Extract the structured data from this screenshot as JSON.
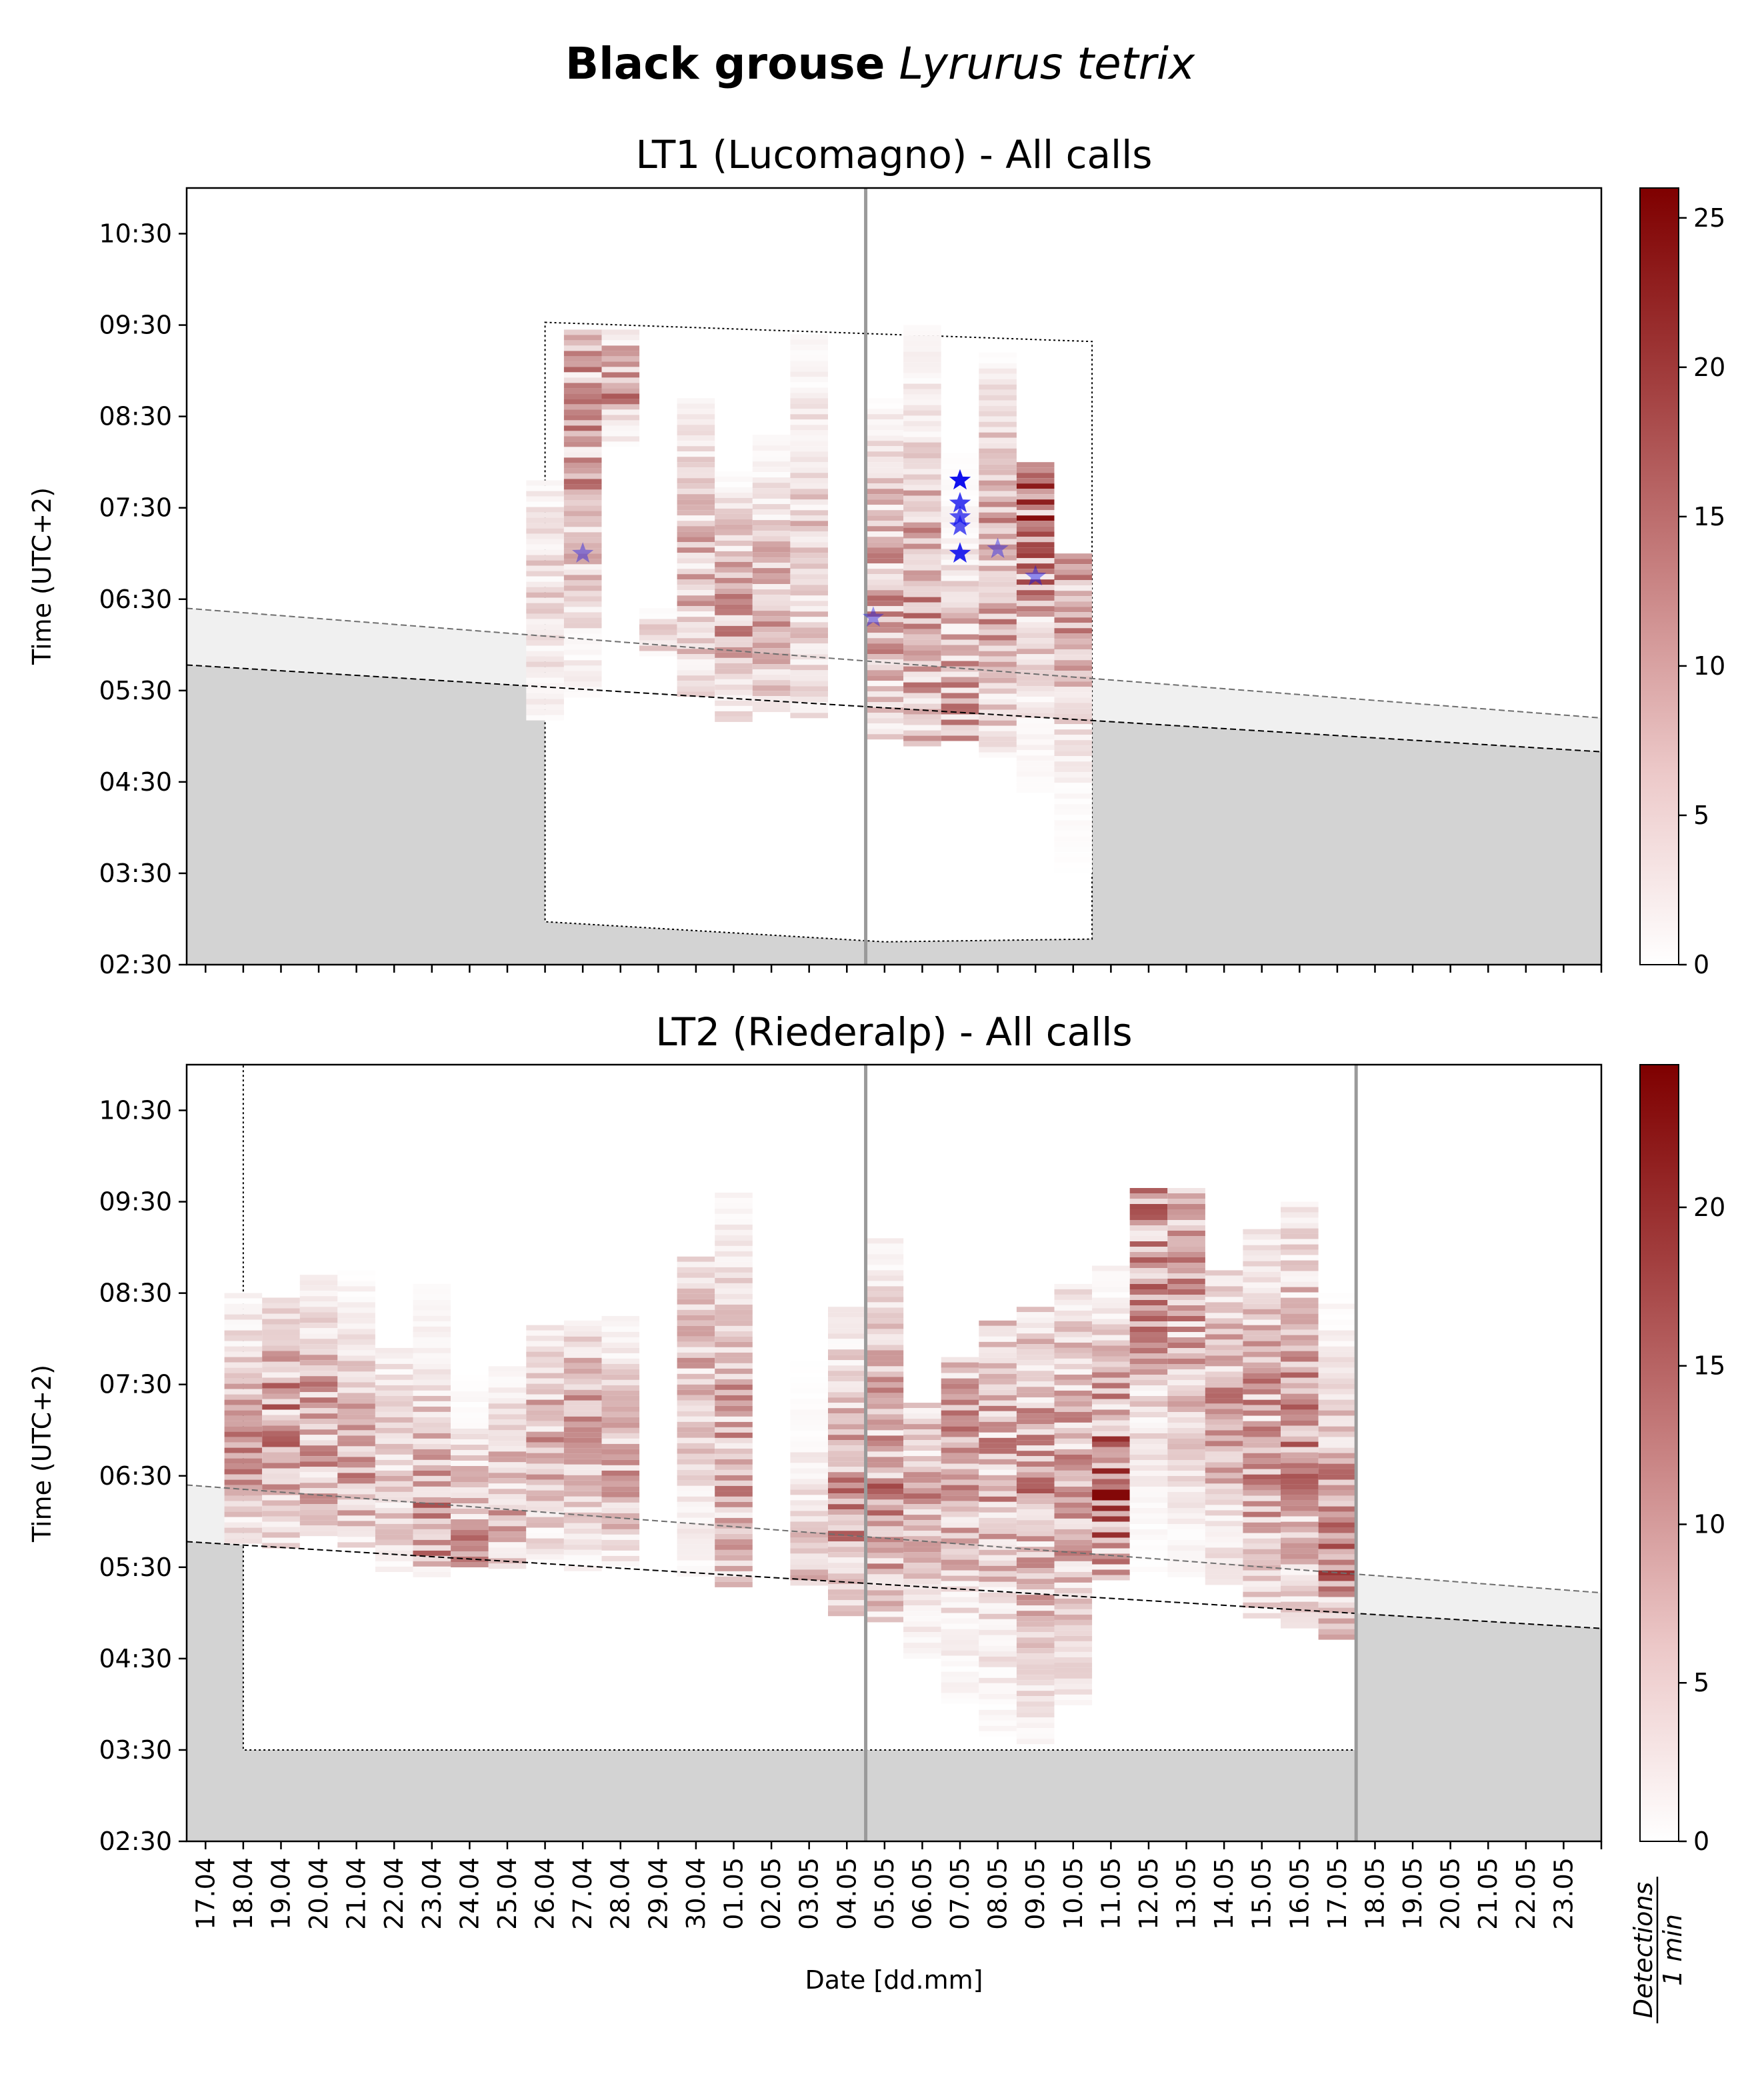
{
  "figure": {
    "title_bold": "Black grouse",
    "title_italic": "Lyrurus tetrix"
  },
  "colorbar_label": {
    "numerator": "Detections",
    "denominator": "1 min"
  },
  "colors": {
    "cmap_low": "#ffffff",
    "cmap_high": "#7f0000",
    "night_shade": "#d3d3d3",
    "twilight_shade": "#f0f0f0",
    "civil_line": "#000000",
    "twilight_line": "#6e6e6e",
    "recording_box": "#000000",
    "marker_line": "#9a9a9a",
    "star": "#1010ee"
  },
  "chart_data": [
    {
      "type": "heatmap",
      "title": "LT1 (Lucomagno) - All calls",
      "xlabel": "",
      "ylabel": "Time (UTC+2)",
      "x_tick_labels": [],
      "y_tick_labels": [
        "02:30",
        "03:30",
        "04:30",
        "05:30",
        "06:30",
        "07:30",
        "08:30",
        "09:30",
        "10:30"
      ],
      "colorbar": {
        "ticks": [
          0,
          5,
          10,
          15,
          20,
          25
        ],
        "range": [
          0,
          26
        ]
      },
      "grid": false,
      "vertical_marker_day": 17.5,
      "dawn_line_hours": {
        "start": 5.78,
        "end": 4.83
      },
      "twilight_line_hours": {
        "start": 6.4,
        "end": 5.2
      },
      "recording_window": [
        {
          "day": 9,
          "start_h": 2.97,
          "end_h": 9.53
        },
        {
          "day": 18,
          "start_h": 2.75,
          "end_h": 9.4
        },
        {
          "day": 23.5,
          "start_h": 2.78,
          "end_h": 9.32
        }
      ],
      "days": [
        {
          "day": 9,
          "start_h": 5.2,
          "end_h": 7.8,
          "peak": 8,
          "peak_h": 6.6
        },
        {
          "day": 10,
          "start_h": 5.45,
          "end_h": 9.45,
          "peak": 18,
          "peak_h": 8.2
        },
        {
          "day": 11,
          "start_h": 8.2,
          "end_h": 9.45,
          "peak": 16,
          "peak_h": 8.9
        },
        {
          "day": 12,
          "start_h": 5.9,
          "end_h": 6.4,
          "peak": 8,
          "peak_h": 6.1
        },
        {
          "day": 13,
          "start_h": 5.45,
          "end_h": 8.7,
          "peak": 12,
          "peak_h": 6.8
        },
        {
          "day": 14,
          "start_h": 5.2,
          "end_h": 7.9,
          "peak": 14,
          "peak_h": 6.4
        },
        {
          "day": 15,
          "start_h": 5.3,
          "end_h": 8.3,
          "peak": 12,
          "peak_h": 6.4
        },
        {
          "day": 16,
          "start_h": 5.2,
          "end_h": 9.4,
          "peak": 9,
          "peak_h": 6.9
        },
        {
          "day": 18,
          "start_h": 5.0,
          "end_h": 8.7,
          "peak": 15,
          "peak_h": 6.6
        },
        {
          "day": 19,
          "start_h": 4.9,
          "end_h": 9.5,
          "peak": 16,
          "peak_h": 6.3
        },
        {
          "day": 20,
          "start_h": 5.0,
          "end_h": 8.1,
          "peak": 14,
          "peak_h": 5.5
        },
        {
          "day": 21,
          "start_h": 4.8,
          "end_h": 9.2,
          "peak": 15,
          "peak_h": 6.7
        },
        {
          "day": 22,
          "start_h": 4.4,
          "end_h": 8.0,
          "peak": 22,
          "peak_h": 7.4
        },
        {
          "day": 23,
          "start_h": 3.5,
          "end_h": 7.0,
          "peak": 16,
          "peak_h": 6.7
        }
      ],
      "stars": [
        {
          "day": 10,
          "hour": 7.0,
          "opacity": 0.4
        },
        {
          "day": 17.7,
          "hour": 6.3,
          "opacity": 0.4
        },
        {
          "day": 20,
          "hour": 7.8,
          "opacity": 1.0
        },
        {
          "day": 20,
          "hour": 7.55,
          "opacity": 0.8
        },
        {
          "day": 20,
          "hour": 7.4,
          "opacity": 0.7
        },
        {
          "day": 20,
          "hour": 7.3,
          "opacity": 0.7
        },
        {
          "day": 20,
          "hour": 7.0,
          "opacity": 0.9
        },
        {
          "day": 21,
          "hour": 7.05,
          "opacity": 0.4
        },
        {
          "day": 22,
          "hour": 6.75,
          "opacity": 0.45
        }
      ]
    },
    {
      "type": "heatmap",
      "title": "LT2 (Riederalp) - All calls",
      "xlabel": "Date [dd.mm]",
      "ylabel": "Time (UTC+2)",
      "x_tick_labels": [
        "17.04",
        "18.04",
        "19.04",
        "20.04",
        "21.04",
        "22.04",
        "23.04",
        "24.04",
        "25.04",
        "26.04",
        "27.04",
        "28.04",
        "29.04",
        "30.04",
        "01.05",
        "02.05",
        "03.05",
        "04.05",
        "05.05",
        "06.05",
        "07.05",
        "08.05",
        "09.05",
        "10.05",
        "11.05",
        "12.05",
        "13.05",
        "14.05",
        "15.05",
        "16.05",
        "17.05",
        "18.05",
        "19.05",
        "20.05",
        "21.05",
        "22.05",
        "23.05"
      ],
      "y_tick_labels": [
        "02:30",
        "03:30",
        "04:30",
        "05:30",
        "06:30",
        "07:30",
        "08:30",
        "09:30",
        "10:30"
      ],
      "colorbar": {
        "ticks": [
          0,
          5,
          10,
          15,
          20
        ],
        "range": [
          0,
          24.5
        ]
      },
      "grid": false,
      "vertical_marker_days": [
        17.5,
        30.5
      ],
      "dawn_line_hours": {
        "start": 5.78,
        "end": 4.83
      },
      "twilight_line_hours": {
        "start": 6.4,
        "end": 5.22
      },
      "recording_window": [
        {
          "day": 1,
          "start_h": 3.5,
          "end_h": 11.1
        },
        {
          "day": 30.5,
          "start_h": 3.5,
          "end_h": 11.1
        }
      ],
      "days": [
        {
          "day": 1,
          "start_h": 5.8,
          "end_h": 8.5,
          "peak": 14,
          "peak_h": 6.9
        },
        {
          "day": 2,
          "start_h": 5.75,
          "end_h": 8.45,
          "peak": 17,
          "peak_h": 7.1
        },
        {
          "day": 3,
          "start_h": 5.85,
          "end_h": 8.7,
          "peak": 15,
          "peak_h": 7.0
        },
        {
          "day": 4,
          "start_h": 5.75,
          "end_h": 8.75,
          "peak": 13,
          "peak_h": 6.7
        },
        {
          "day": 5,
          "start_h": 5.5,
          "end_h": 7.9,
          "peak": 12,
          "peak_h": 6.6
        },
        {
          "day": 6,
          "start_h": 5.4,
          "end_h": 8.6,
          "peak": 16,
          "peak_h": 6.1
        },
        {
          "day": 7,
          "start_h": 5.5,
          "end_h": 7.6,
          "peak": 14,
          "peak_h": 5.9
        },
        {
          "day": 8,
          "start_h": 5.5,
          "end_h": 7.7,
          "peak": 13,
          "peak_h": 6.3
        },
        {
          "day": 9,
          "start_h": 5.55,
          "end_h": 8.15,
          "peak": 12,
          "peak_h": 6.9
        },
        {
          "day": 10,
          "start_h": 5.5,
          "end_h": 8.2,
          "peak": 13,
          "peak_h": 7.1
        },
        {
          "day": 11,
          "start_h": 5.55,
          "end_h": 8.25,
          "peak": 12,
          "peak_h": 6.6
        },
        {
          "day": 13,
          "start_h": 5.45,
          "end_h": 8.9,
          "peak": 10,
          "peak_h": 7.7
        },
        {
          "day": 14,
          "start_h": 5.3,
          "end_h": 9.6,
          "peak": 14,
          "peak_h": 6.8
        },
        {
          "day": 16,
          "start_h": 5.35,
          "end_h": 7.75,
          "peak": 9,
          "peak_h": 5.6
        },
        {
          "day": 17,
          "start_h": 5.0,
          "end_h": 8.35,
          "peak": 16,
          "peak_h": 6.4
        },
        {
          "day": 18,
          "start_h": 4.95,
          "end_h": 9.1,
          "peak": 17,
          "peak_h": 6.5
        },
        {
          "day": 19,
          "start_h": 4.55,
          "end_h": 7.3,
          "peak": 13,
          "peak_h": 6.3
        },
        {
          "day": 20,
          "start_h": 4.05,
          "end_h": 7.8,
          "peak": 15,
          "peak_h": 6.7
        },
        {
          "day": 21,
          "start_h": 3.7,
          "end_h": 8.2,
          "peak": 14,
          "peak_h": 6.8
        },
        {
          "day": 22,
          "start_h": 3.6,
          "end_h": 8.35,
          "peak": 15,
          "peak_h": 6.4
        },
        {
          "day": 23,
          "start_h": 4.0,
          "end_h": 8.6,
          "peak": 14,
          "peak_h": 6.5
        },
        {
          "day": 24,
          "start_h": 5.4,
          "end_h": 8.8,
          "peak": 22,
          "peak_h": 6.45
        },
        {
          "day": 25,
          "start_h": 5.5,
          "end_h": 9.65,
          "peak": 17,
          "peak_h": 8.9
        },
        {
          "day": 26,
          "start_h": 5.4,
          "end_h": 9.65,
          "peak": 14,
          "peak_h": 8.5
        },
        {
          "day": 27,
          "start_h": 5.35,
          "end_h": 8.75,
          "peak": 13,
          "peak_h": 7.3
        },
        {
          "day": 28,
          "start_h": 4.95,
          "end_h": 9.2,
          "peak": 15,
          "peak_h": 6.9
        },
        {
          "day": 29,
          "start_h": 4.85,
          "end_h": 9.5,
          "peak": 16,
          "peak_h": 7.0
        },
        {
          "day": 30,
          "start_h": 4.75,
          "end_h": 8.5,
          "peak": 18,
          "peak_h": 5.7
        }
      ],
      "stars": []
    }
  ]
}
